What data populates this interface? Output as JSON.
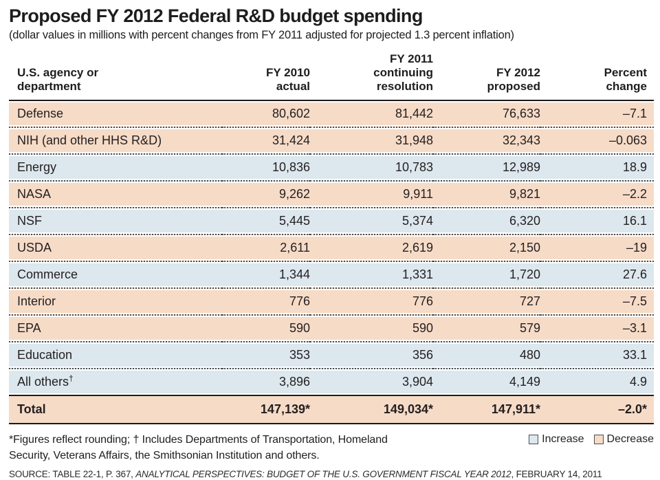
{
  "header": {
    "title": "Proposed FY 2012 Federal R&D budget spending",
    "subtitle": "(dollar values in millions with percent changes from FY 2011 adjusted for projected 1.3 percent inflation)"
  },
  "chart_data": {
    "type": "table",
    "title": "Proposed FY 2012 Federal R&D budget spending",
    "units": "dollar values in millions; percent changes from FY 2011 adjusted for projected 1.3 percent inflation",
    "columns": [
      "U.S. agency or\ndepartment",
      "FY 2010\nactual",
      "FY 2011\ncontinuing\nresolution",
      "FY 2012\nproposed",
      "Percent\nchange"
    ],
    "rows": [
      {
        "agency": "Defense",
        "fy2010": 80602,
        "fy2011": 81442,
        "fy2012": 76633,
        "percent_change": -7.1,
        "trend": "decrease"
      },
      {
        "agency": "NIH (and other HHS R&D)",
        "fy2010": 31424,
        "fy2011": 31948,
        "fy2012": 32343,
        "percent_change": -0.063,
        "trend": "decrease"
      },
      {
        "agency": "Energy",
        "fy2010": 10836,
        "fy2011": 10783,
        "fy2012": 12989,
        "percent_change": 18.9,
        "trend": "increase"
      },
      {
        "agency": "NASA",
        "fy2010": 9262,
        "fy2011": 9911,
        "fy2012": 9821,
        "percent_change": -2.2,
        "trend": "decrease"
      },
      {
        "agency": "NSF",
        "fy2010": 5445,
        "fy2011": 5374,
        "fy2012": 6320,
        "percent_change": 16.1,
        "trend": "increase"
      },
      {
        "agency": "USDA",
        "fy2010": 2611,
        "fy2011": 2619,
        "fy2012": 2150,
        "percent_change": -19,
        "trend": "decrease"
      },
      {
        "agency": "Commerce",
        "fy2010": 1344,
        "fy2011": 1331,
        "fy2012": 1720,
        "percent_change": 27.6,
        "trend": "increase"
      },
      {
        "agency": "Interior",
        "fy2010": 776,
        "fy2011": 776,
        "fy2012": 727,
        "percent_change": -7.5,
        "trend": "decrease"
      },
      {
        "agency": "EPA",
        "fy2010": 590,
        "fy2011": 590,
        "fy2012": 579,
        "percent_change": -3.1,
        "trend": "decrease"
      },
      {
        "agency": "Education",
        "fy2010": 353,
        "fy2011": 356,
        "fy2012": 480,
        "percent_change": 33.1,
        "trend": "increase"
      },
      {
        "agency": "All others",
        "agency_sup": "†",
        "fy2010": 3896,
        "fy2011": 3904,
        "fy2012": 4149,
        "percent_change": 4.9,
        "trend": "increase"
      }
    ],
    "total": {
      "agency": "Total",
      "fy2010": "147,139*",
      "fy2011": "149,034*",
      "fy2012": "147,911*",
      "percent_change": "–2.0*",
      "trend": "decrease"
    }
  },
  "footnote": "*Figures reflect rounding; † Includes Departments of Transportation, Homeland\nSecurity, Veterans Affairs, the Smithsonian Institution and others.",
  "legend": {
    "increase_label": "Increase",
    "decrease_label": "Decrease"
  },
  "source": {
    "prefix": "SOURCE: TABLE 22-1, P. 367, ",
    "italic": "ANALYTICAL PERSPECTIVES: BUDGET OF THE U.S. GOVERNMENT FISCAL YEAR 2012",
    "suffix": ", FEBRUARY 14, 2011"
  },
  "colors": {
    "increase": "#dce7ee",
    "decrease": "#f6dbc7",
    "rule": "#1a1a1a",
    "text": "#231f20"
  }
}
